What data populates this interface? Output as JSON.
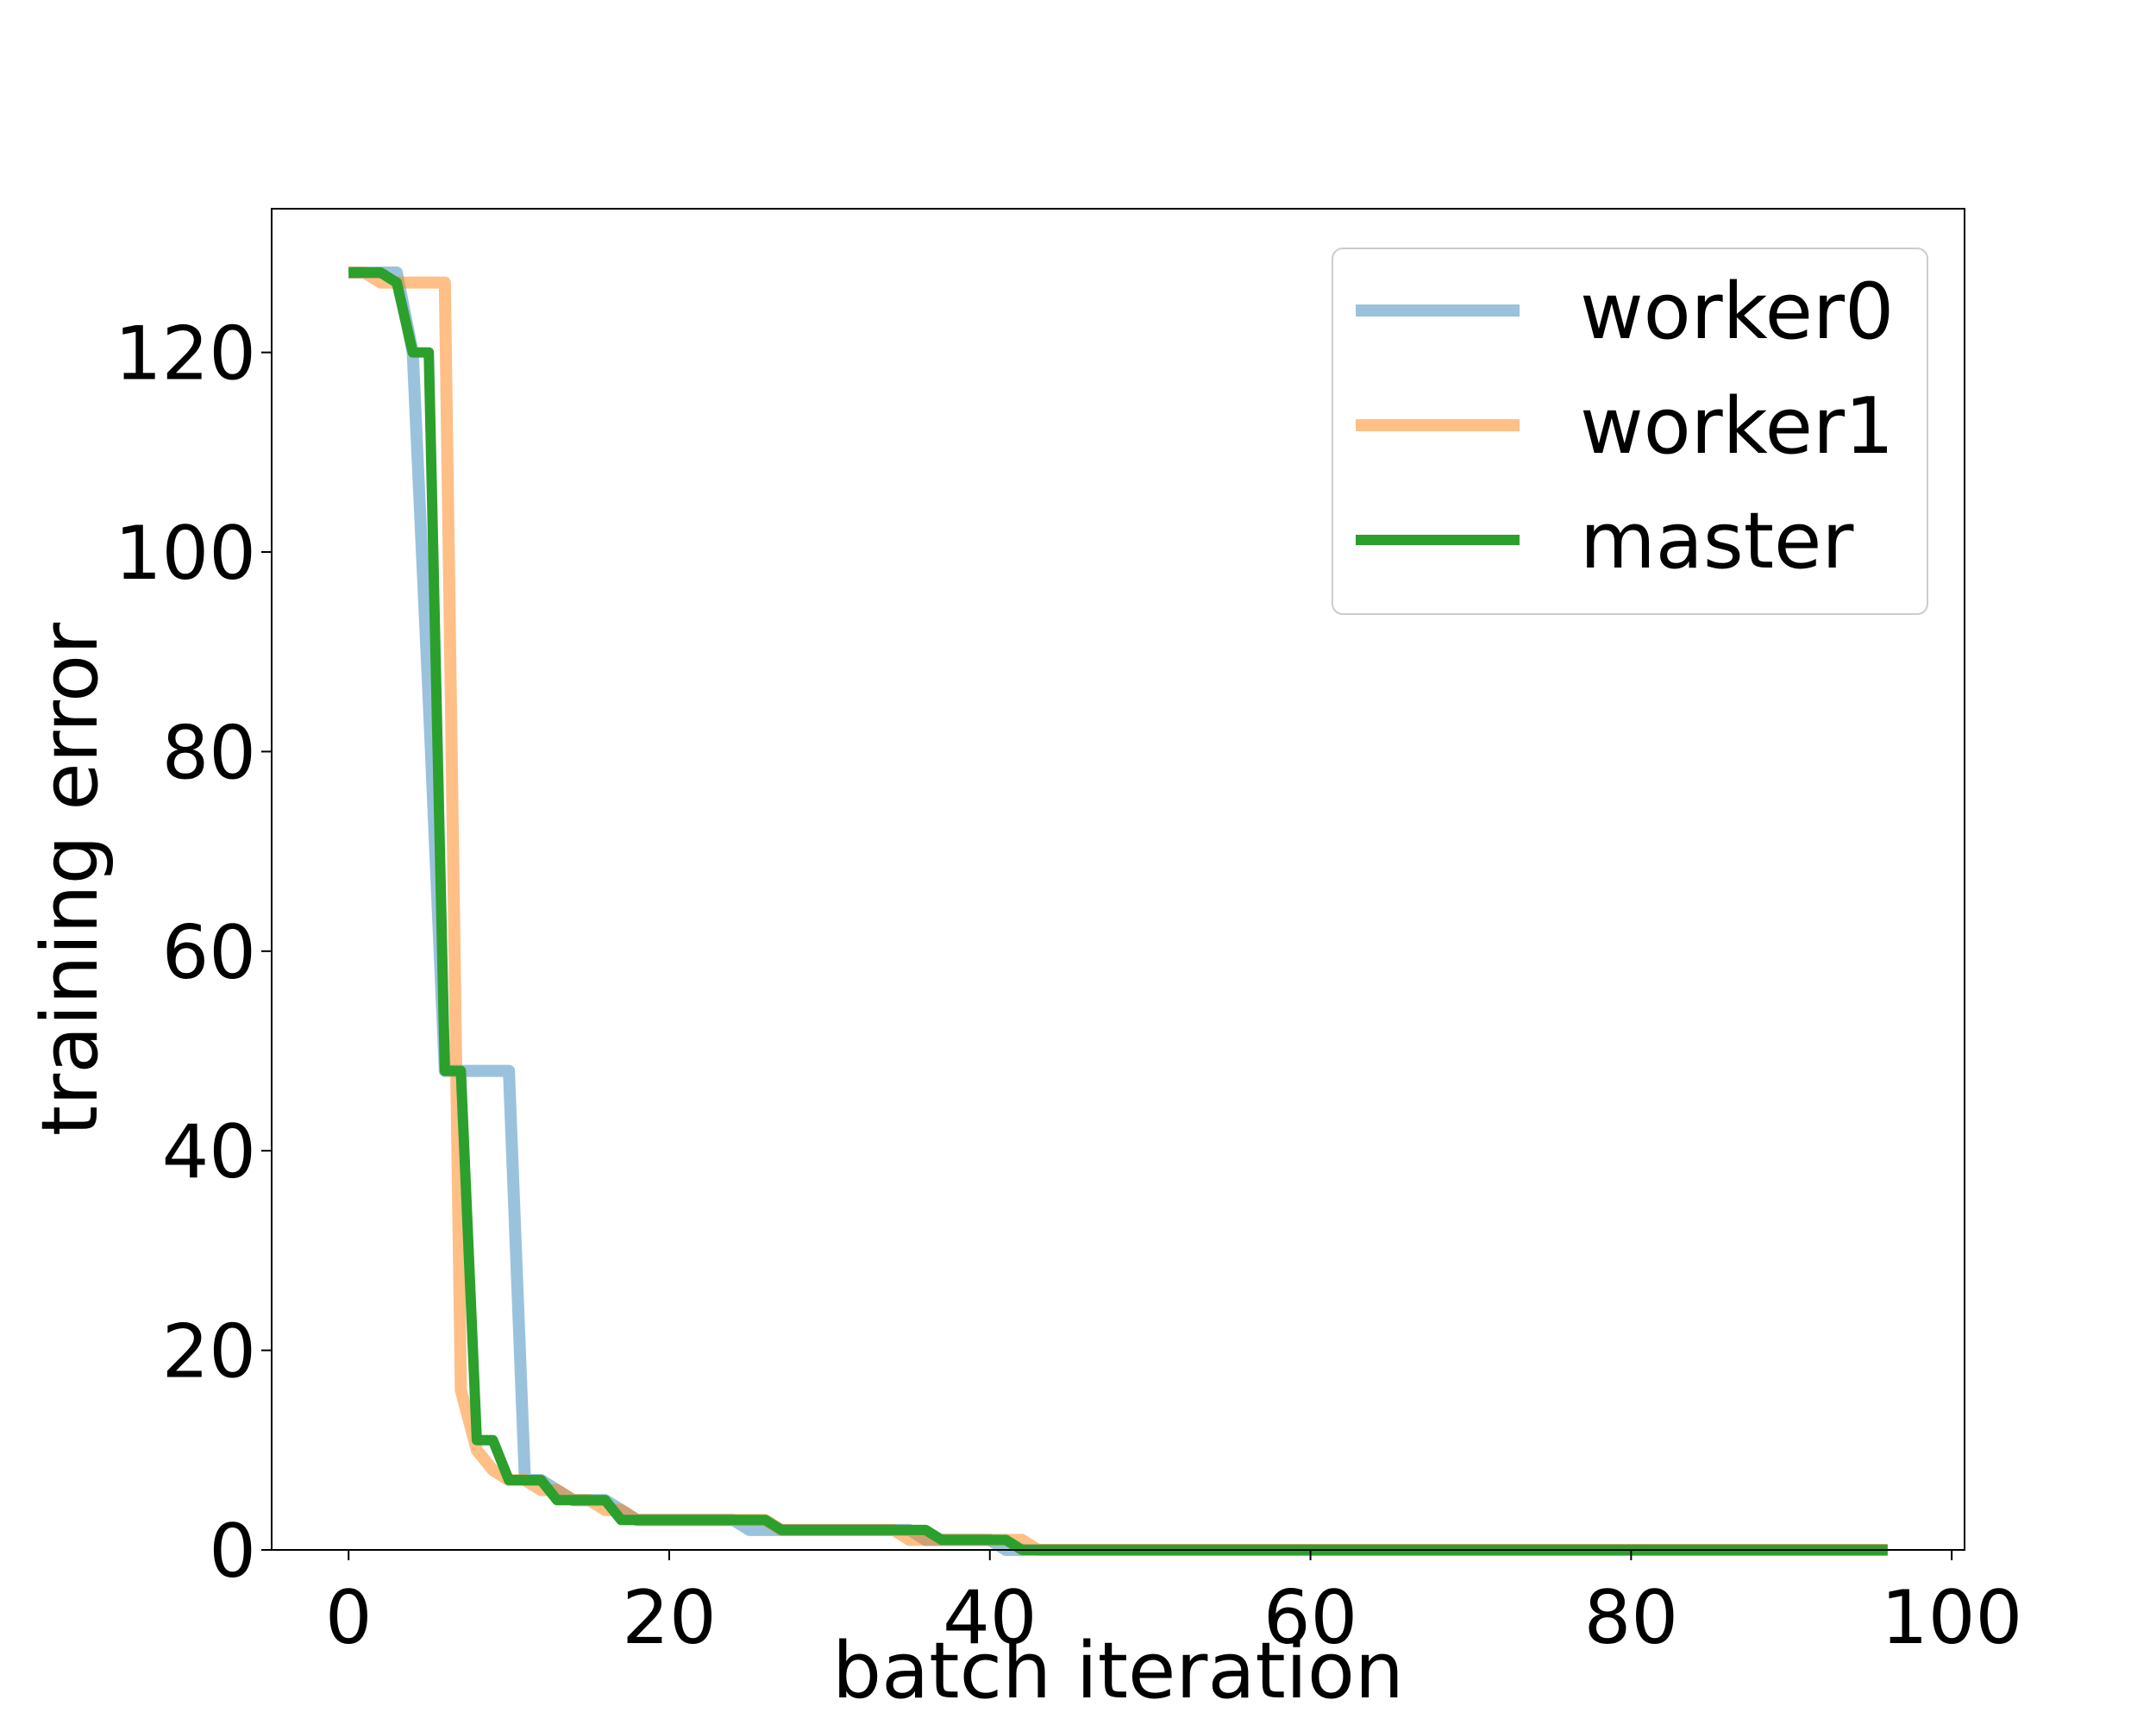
{
  "chart_data": {
    "type": "line",
    "title": "",
    "xlabel": "batch iteration",
    "ylabel": "training error",
    "xlim": [
      -4.8,
      100.8
    ],
    "ylim": [
      0,
      134.4
    ],
    "xticks": [
      0,
      20,
      40,
      60,
      80,
      100
    ],
    "yticks": [
      0,
      20,
      40,
      60,
      80,
      100,
      120
    ],
    "grid": false,
    "legend_position": "upper-right",
    "series": [
      {
        "name": "worker0",
        "color": "#1f77b4",
        "x": [
          0,
          1,
          2,
          3,
          4,
          5,
          6,
          7,
          8,
          9,
          10,
          11,
          12,
          13,
          14,
          15,
          16,
          17,
          18,
          19,
          20,
          21,
          22,
          23,
          24,
          25,
          26,
          27,
          28,
          29,
          30,
          31,
          32,
          33,
          34,
          35,
          36,
          37,
          38,
          39,
          40,
          41,
          42,
          96
        ],
        "y": [
          128,
          128,
          128,
          128,
          120,
          85,
          48,
          48,
          48,
          48,
          48,
          7,
          7,
          6,
          5,
          5,
          5,
          4,
          3,
          3,
          3,
          3,
          3,
          3,
          3,
          2,
          2,
          2,
          2,
          2,
          2,
          2,
          2,
          2,
          2,
          2,
          1,
          1,
          1,
          1,
          1,
          0,
          0,
          0
        ]
      },
      {
        "name": "worker1",
        "color": "#ff7f0e",
        "x": [
          0,
          1,
          2,
          3,
          4,
          5,
          6,
          7,
          8,
          9,
          10,
          11,
          12,
          13,
          14,
          15,
          16,
          17,
          18,
          19,
          20,
          21,
          22,
          23,
          24,
          25,
          26,
          27,
          28,
          29,
          30,
          31,
          32,
          33,
          34,
          35,
          36,
          37,
          38,
          39,
          40,
          41,
          42,
          43,
          96
        ],
        "y": [
          128,
          128,
          127,
          127,
          127,
          127,
          127,
          16,
          10,
          8,
          7,
          7,
          6,
          6,
          5,
          5,
          4,
          4,
          3,
          3,
          3,
          3,
          3,
          3,
          3,
          3,
          3,
          2,
          2,
          2,
          2,
          2,
          2,
          2,
          2,
          1,
          1,
          1,
          1,
          1,
          1,
          1,
          1,
          0,
          0
        ]
      },
      {
        "name": "master",
        "color": "#2ca02c",
        "x": [
          0,
          1,
          2,
          3,
          4,
          5,
          6,
          7,
          8,
          9,
          10,
          11,
          12,
          13,
          14,
          15,
          16,
          17,
          18,
          19,
          20,
          21,
          22,
          23,
          24,
          25,
          26,
          27,
          28,
          29,
          30,
          31,
          32,
          33,
          34,
          35,
          36,
          37,
          38,
          39,
          40,
          41,
          42,
          96
        ],
        "y": [
          128,
          128,
          128,
          127,
          120,
          120,
          48,
          48,
          11,
          11,
          7,
          7,
          7,
          5,
          5,
          5,
          5,
          3,
          3,
          3,
          3,
          3,
          3,
          3,
          3,
          3,
          3,
          2,
          2,
          2,
          2,
          2,
          2,
          2,
          2,
          2,
          2,
          1,
          1,
          1,
          1,
          1,
          0,
          0
        ]
      }
    ]
  }
}
